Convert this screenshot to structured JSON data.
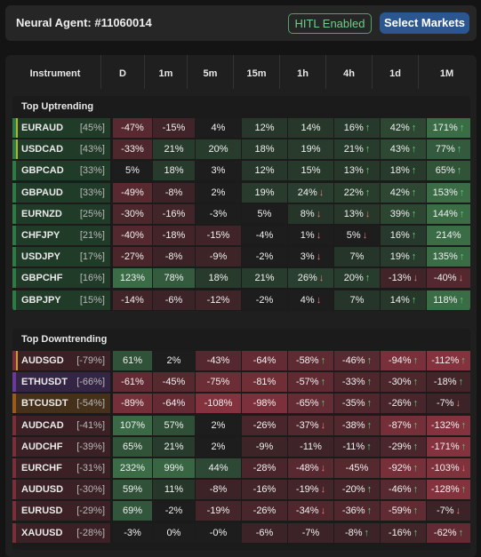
{
  "agent": {
    "title": "Neural Agent: #11060014"
  },
  "hitl": {
    "label": "HITL Enabled"
  },
  "select_markets": {
    "label": "Select Markets"
  },
  "columns": [
    "Instrument",
    "D",
    "1m",
    "5m",
    "15m",
    "1h",
    "4h",
    "1d",
    "1M"
  ],
  "groups": [
    {
      "title": "Top Uptrending",
      "rows": [
        {
          "sym": "EURAUD",
          "score": "[45%]",
          "stripe": "#2e7a45",
          "marker": true,
          "cells": [
            [
              "-47%",
              ""
            ],
            [
              "-15%",
              ""
            ],
            [
              "4%",
              ""
            ],
            [
              "12%",
              ""
            ],
            [
              "14%",
              ""
            ],
            [
              "16%",
              "up"
            ],
            [
              "42%",
              "up"
            ],
            [
              "171%",
              "up"
            ]
          ]
        },
        {
          "sym": "USDCAD",
          "score": "[43%]",
          "stripe": "#2e7a45",
          "marker": true,
          "cells": [
            [
              "-33%",
              ""
            ],
            [
              "21%",
              ""
            ],
            [
              "20%",
              ""
            ],
            [
              "18%",
              ""
            ],
            [
              "19%",
              ""
            ],
            [
              "21%",
              "up"
            ],
            [
              "43%",
              "up"
            ],
            [
              "77%",
              "up"
            ]
          ]
        },
        {
          "sym": "GBPCAD",
          "score": "[33%]",
          "stripe": "#2e7a45",
          "marker": false,
          "cells": [
            [
              "5%",
              ""
            ],
            [
              "18%",
              ""
            ],
            [
              "3%",
              ""
            ],
            [
              "12%",
              ""
            ],
            [
              "15%",
              ""
            ],
            [
              "13%",
              "up"
            ],
            [
              "18%",
              "up"
            ],
            [
              "65%",
              "up"
            ]
          ]
        },
        {
          "sym": "GBPAUD",
          "score": "[33%]",
          "stripe": "#2e7a45",
          "marker": false,
          "cells": [
            [
              "-49%",
              ""
            ],
            [
              "-8%",
              ""
            ],
            [
              "2%",
              ""
            ],
            [
              "19%",
              ""
            ],
            [
              "24%",
              "dn"
            ],
            [
              "22%",
              "up"
            ],
            [
              "42%",
              "up"
            ],
            [
              "153%",
              "up"
            ]
          ]
        },
        {
          "sym": "EURNZD",
          "score": "[25%]",
          "stripe": "#2e7a45",
          "marker": false,
          "cells": [
            [
              "-30%",
              ""
            ],
            [
              "-16%",
              ""
            ],
            [
              "-3%",
              ""
            ],
            [
              "5%",
              ""
            ],
            [
              "8%",
              "dn"
            ],
            [
              "13%",
              "dn"
            ],
            [
              "39%",
              "up"
            ],
            [
              "144%",
              "up"
            ]
          ]
        },
        {
          "sym": "CHFJPY",
          "score": "[21%]",
          "stripe": "#2e7a45",
          "marker": false,
          "cells": [
            [
              "-40%",
              ""
            ],
            [
              "-18%",
              ""
            ],
            [
              "-15%",
              ""
            ],
            [
              "-4%",
              ""
            ],
            [
              "1%",
              "dn"
            ],
            [
              "5%",
              "dn"
            ],
            [
              "16%",
              "up"
            ],
            [
              "214%",
              ""
            ]
          ]
        },
        {
          "sym": "USDJPY",
          "score": "[17%]",
          "stripe": "#2e7a45",
          "marker": false,
          "cells": [
            [
              "-27%",
              ""
            ],
            [
              "-8%",
              ""
            ],
            [
              "-9%",
              ""
            ],
            [
              "-2%",
              ""
            ],
            [
              "3%",
              "dn"
            ],
            [
              "7%",
              ""
            ],
            [
              "19%",
              "up"
            ],
            [
              "135%",
              "up"
            ]
          ]
        },
        {
          "sym": "GBPCHF",
          "score": "[16%]",
          "stripe": "#2e7a45",
          "marker": false,
          "cells": [
            [
              "123%",
              ""
            ],
            [
              "78%",
              ""
            ],
            [
              "18%",
              ""
            ],
            [
              "21%",
              ""
            ],
            [
              "26%",
              "dn"
            ],
            [
              "20%",
              "up"
            ],
            [
              "-13%",
              "dn"
            ],
            [
              "-40%",
              "dn"
            ]
          ]
        },
        {
          "sym": "GBPJPY",
          "score": "[15%]",
          "stripe": "#2e7a45",
          "marker": false,
          "cells": [
            [
              "-14%",
              ""
            ],
            [
              "-6%",
              ""
            ],
            [
              "-12%",
              ""
            ],
            [
              "-2%",
              ""
            ],
            [
              "4%",
              "dn"
            ],
            [
              "7%",
              ""
            ],
            [
              "14%",
              "up"
            ],
            [
              "118%",
              "up"
            ]
          ]
        }
      ]
    },
    {
      "title": "Top Downtrending",
      "rows": [
        {
          "sym": "AUDSGD",
          "score": "[-79%]",
          "stripe": "#7a2e3a",
          "marker": true,
          "cells": [
            [
              "61%",
              ""
            ],
            [
              "2%",
              ""
            ],
            [
              "-43%",
              ""
            ],
            [
              "-64%",
              ""
            ],
            [
              "-58%",
              "up"
            ],
            [
              "-46%",
              "up"
            ],
            [
              "-94%",
              "up"
            ],
            [
              "-112%",
              "up"
            ]
          ]
        },
        {
          "sym": "ETHUSDT",
          "score": "[-66%]",
          "stripe": "#6a3a9a",
          "marker": false,
          "cells": [
            [
              "-61%",
              ""
            ],
            [
              "-45%",
              ""
            ],
            [
              "-75%",
              ""
            ],
            [
              "-81%",
              ""
            ],
            [
              "-57%",
              "up"
            ],
            [
              "-33%",
              "up"
            ],
            [
              "-30%",
              "up"
            ],
            [
              "-18%",
              "up"
            ]
          ]
        },
        {
          "sym": "BTCUSDT",
          "score": "[-54%]",
          "stripe": "#9a5a1a",
          "marker": false,
          "cells": [
            [
              "-89%",
              ""
            ],
            [
              "-64%",
              ""
            ],
            [
              "-108%",
              ""
            ],
            [
              "-98%",
              ""
            ],
            [
              "-65%",
              "up"
            ],
            [
              "-35%",
              "up"
            ],
            [
              "-26%",
              "up"
            ],
            [
              "-7%",
              "dn"
            ]
          ]
        },
        {
          "sym": "AUDCAD",
          "score": "[-41%]",
          "stripe": "#7a2e3a",
          "marker": false,
          "cells": [
            [
              "107%",
              ""
            ],
            [
              "57%",
              ""
            ],
            [
              "2%",
              ""
            ],
            [
              "-26%",
              ""
            ],
            [
              "-37%",
              "dn"
            ],
            [
              "-38%",
              "up"
            ],
            [
              "-87%",
              "up"
            ],
            [
              "-132%",
              "up"
            ]
          ]
        },
        {
          "sym": "AUDCHF",
          "score": "[-39%]",
          "stripe": "#7a2e3a",
          "marker": false,
          "cells": [
            [
              "65%",
              ""
            ],
            [
              "21%",
              ""
            ],
            [
              "2%",
              ""
            ],
            [
              "-9%",
              ""
            ],
            [
              "-11%",
              ""
            ],
            [
              "-11%",
              "up"
            ],
            [
              "-29%",
              "up"
            ],
            [
              "-171%",
              "up"
            ]
          ]
        },
        {
          "sym": "EURCHF",
          "score": "[-31%]",
          "stripe": "#7a2e3a",
          "marker": false,
          "cells": [
            [
              "232%",
              ""
            ],
            [
              "99%",
              ""
            ],
            [
              "44%",
              ""
            ],
            [
              "-28%",
              ""
            ],
            [
              "-48%",
              "dn"
            ],
            [
              "-45%",
              ""
            ],
            [
              "-92%",
              "up"
            ],
            [
              "-103%",
              "dn"
            ]
          ]
        },
        {
          "sym": "AUDUSD",
          "score": "[-30%]",
          "stripe": "#7a2e3a",
          "marker": false,
          "cells": [
            [
              "59%",
              ""
            ],
            [
              "11%",
              ""
            ],
            [
              "-8%",
              ""
            ],
            [
              "-16%",
              ""
            ],
            [
              "-19%",
              "dn"
            ],
            [
              "-20%",
              "up"
            ],
            [
              "-46%",
              "up"
            ],
            [
              "-128%",
              "up"
            ]
          ]
        },
        {
          "sym": "EURUSD",
          "score": "[-29%]",
          "stripe": "#7a2e3a",
          "marker": false,
          "cells": [
            [
              "69%",
              ""
            ],
            [
              "-2%",
              ""
            ],
            [
              "-19%",
              ""
            ],
            [
              "-26%",
              ""
            ],
            [
              "-34%",
              "dn"
            ],
            [
              "-36%",
              "up"
            ],
            [
              "-59%",
              "up"
            ],
            [
              "-7%",
              "dn"
            ]
          ]
        },
        {
          "sym": "XAUUSD",
          "score": "[-28%]",
          "stripe": "#7a2e3a",
          "marker": false,
          "cells": [
            [
              "-3%",
              ""
            ],
            [
              "0%",
              ""
            ],
            [
              "-0%",
              ""
            ],
            [
              "-6%",
              ""
            ],
            [
              "-7%",
              ""
            ],
            [
              "-8%",
              "up"
            ],
            [
              "-16%",
              "up"
            ],
            [
              "-62%",
              "up"
            ]
          ]
        }
      ]
    }
  ],
  "colors": {
    "up_arrow": "#5fd07a",
    "down_arrow": "#f07a7a",
    "hitl_border": "#4fa46a",
    "select_bg": "#2c5690"
  }
}
